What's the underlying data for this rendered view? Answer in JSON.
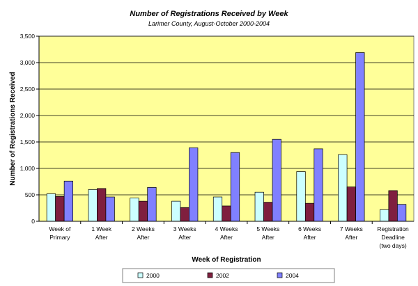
{
  "chart_data": {
    "type": "bar",
    "title": "Number of Registrations Received by Week",
    "subtitle": "Larimer County, August-October 2000-2004",
    "xlabel": "Week of Registration",
    "ylabel": "Number of Registrations Received",
    "ylim": [
      0,
      3500
    ],
    "yticks": [
      0,
      500,
      1000,
      1500,
      2000,
      2500,
      3000,
      3500
    ],
    "ytick_labels": [
      "0",
      "500",
      "1,000",
      "1,500",
      "2,000",
      "2,500",
      "3,000",
      "3,500"
    ],
    "grid": true,
    "legend_position": "bottom",
    "categories": [
      [
        "Week of",
        "Primary"
      ],
      [
        "1 Week",
        "After"
      ],
      [
        "2 Weeks",
        "After"
      ],
      [
        "3 Weeks",
        "After"
      ],
      [
        "4 Weeks",
        "After"
      ],
      [
        "5 Weeks",
        "After"
      ],
      [
        "6 Weeks",
        "After"
      ],
      [
        "7 Weeks",
        "After"
      ],
      [
        "Registration",
        "Deadline",
        "(two days)"
      ]
    ],
    "series": [
      {
        "name": "2000",
        "color": "#ccffff",
        "values": [
          520,
          600,
          440,
          380,
          460,
          550,
          940,
          1260,
          220
        ]
      },
      {
        "name": "2002",
        "color": "#7f1f3f",
        "values": [
          470,
          620,
          380,
          260,
          290,
          360,
          340,
          650,
          580
        ]
      },
      {
        "name": "2004",
        "color": "#8080ff",
        "values": [
          760,
          460,
          640,
          1390,
          1300,
          1550,
          1370,
          3190,
          320
        ]
      }
    ],
    "plot_background": "#ffff99"
  }
}
